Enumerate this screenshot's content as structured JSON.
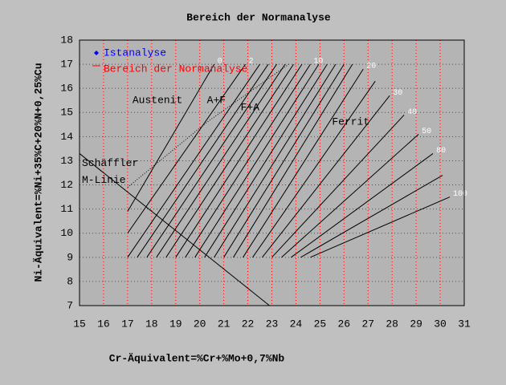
{
  "chart_data": {
    "type": "constitution-diagram",
    "title": "Bereich der Normanalyse",
    "x_label": "Cr-Äquivalent=%Cr+%Mo+0,7%Nb",
    "y_label": "Ni-Äquivalent=%Ni+35%C+20%N+0,25%Cu",
    "xlim": [
      15,
      31
    ],
    "ylim": [
      7,
      18
    ],
    "xticks": [
      15,
      16,
      17,
      18,
      19,
      20,
      21,
      22,
      23,
      24,
      25,
      26,
      27,
      28,
      29,
      30,
      31
    ],
    "yticks": [
      7,
      8,
      9,
      10,
      11,
      12,
      13,
      14,
      15,
      16,
      17,
      18
    ],
    "grid": true,
    "grid_color": "#ff0000",
    "legend": "upper left",
    "series": [
      {
        "name": "Istanalyse",
        "color": "#0000ff",
        "marker": "diamond"
      },
      {
        "name": "Bereich der Normanalyse",
        "color": "#ff0000",
        "marker": "line"
      }
    ],
    "ferrite_lines": [
      {
        "label": "0",
        "x": [
          17,
          20.6
        ],
        "y": [
          10.9,
          17
        ]
      },
      {
        "label": "2",
        "x": [
          17,
          21.9
        ],
        "y": [
          10.0,
          17
        ]
      },
      {
        "x": [
          17.0,
          22.5
        ],
        "y": [
          9,
          17
        ]
      },
      {
        "x": [
          17.4,
          22.85
        ],
        "y": [
          9,
          17
        ]
      },
      {
        "x": [
          17.8,
          23.2
        ],
        "y": [
          9,
          17
        ]
      },
      {
        "x": [
          18.2,
          23.55
        ],
        "y": [
          9,
          17
        ]
      },
      {
        "x": [
          18.6,
          23.9
        ],
        "y": [
          9,
          17
        ]
      },
      {
        "x": [
          19.0,
          24.25
        ],
        "y": [
          9,
          17
        ]
      },
      {
        "label": "10",
        "x": [
          19.4,
          24.6
        ],
        "y": [
          9,
          17
        ]
      },
      {
        "x": [
          19.8,
          24.95
        ],
        "y": [
          9,
          17
        ]
      },
      {
        "x": [
          20.2,
          25.3
        ],
        "y": [
          9,
          17
        ]
      },
      {
        "x": [
          20.6,
          25.65
        ],
        "y": [
          9,
          17
        ]
      },
      {
        "x": [
          21.0,
          26.0
        ],
        "y": [
          9,
          17
        ]
      },
      {
        "x": [
          21.4,
          26.35
        ],
        "y": [
          9,
          17
        ]
      },
      {
        "label": "20",
        "x": [
          21.8,
          26.8
        ],
        "y": [
          9,
          16.8
        ]
      },
      {
        "x": [
          22.2,
          27.3
        ],
        "y": [
          9,
          16.3
        ]
      },
      {
        "label": "30",
        "x": [
          22.6,
          27.9
        ],
        "y": [
          9,
          15.7
        ]
      },
      {
        "label": "40",
        "x": [
          23.0,
          28.5
        ],
        "y": [
          9,
          14.9
        ]
      },
      {
        "label": "50",
        "x": [
          23.4,
          29.1
        ],
        "y": [
          9,
          14.1
        ]
      },
      {
        "label": "80",
        "x": [
          23.8,
          29.7
        ],
        "y": [
          9,
          13.3
        ]
      },
      {
        "x": [
          24.2,
          30.1
        ],
        "y": [
          9,
          12.4
        ]
      },
      {
        "label": "100",
        "x": [
          24.6,
          30.4
        ],
        "y": [
          9,
          11.5
        ]
      }
    ],
    "dotted_line": {
      "x": [
        17,
        20.3,
        23.7
      ],
      "y": [
        11.9,
        14.6,
        17
      ]
    },
    "m_line": {
      "x": [
        15,
        22.9
      ],
      "y": [
        13.3,
        7
      ]
    },
    "annotations": [
      {
        "text": "Austenit",
        "x": 17.2,
        "y": 15.5
      },
      {
        "text": "A+F",
        "x": 20.3,
        "y": 15.5
      },
      {
        "text": "F+A",
        "x": 21.7,
        "y": 15.2
      },
      {
        "text": "Ferrit",
        "x": 25.5,
        "y": 14.6
      },
      {
        "text": "Schäffler",
        "x": 15.1,
        "y": 12.9
      },
      {
        "text": "M-Linie",
        "x": 15.1,
        "y": 12.2
      }
    ]
  }
}
